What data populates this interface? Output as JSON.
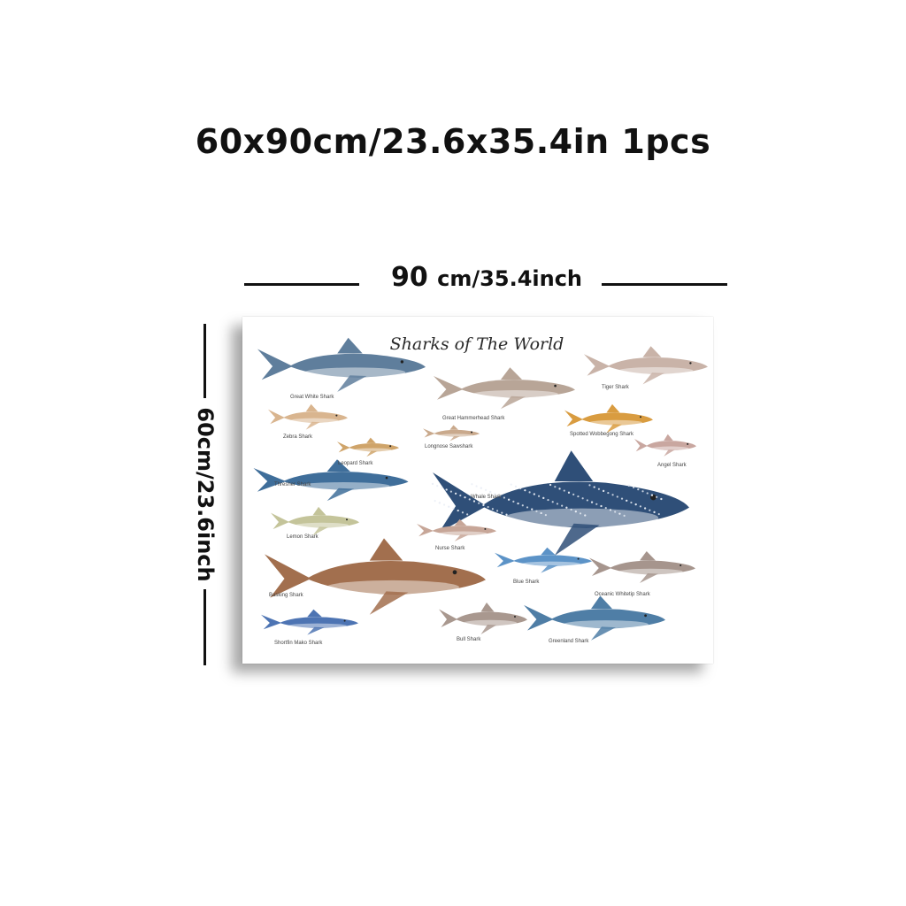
{
  "headline": "60x90cm/23.6x35.4in 1pcs",
  "width_dimension": {
    "value": "90",
    "unit": "cm/35.4inch"
  },
  "height_dimension": "60cm/23.6inch",
  "poster": {
    "title": "Sharks of The World",
    "sharks": [
      "Great White Shark",
      "Great Hammerhead Shark",
      "Tiger Shark",
      "Zebra Shark",
      "Leopard Shark",
      "Longnose Sawshark",
      "Spotted Wobbegong Shark",
      "Angel Shark",
      "Thresher Shark",
      "Whale Shark",
      "Lemon Shark",
      "Nurse Shark",
      "Blue Shark",
      "Oceanic Whitetip Shark",
      "Basking Shark",
      "Shortfin Mako Shark",
      "Bull Shark",
      "Greenland Shark"
    ]
  },
  "colors": {
    "great_white": "#5f7e9c",
    "hammerhead": "#b8a597",
    "tiger": "#c9b3a8",
    "zebra": "#d9b58f",
    "leopard": "#cfa46a",
    "sawshark": "#c9a98c",
    "wobbegong": "#d99c40",
    "angel": "#c9a7a0",
    "thresher": "#3f6e9a",
    "whale": "#2f4f78",
    "lemon": "#c4c49a",
    "nurse": "#c7a698",
    "blue": "#5c93c7",
    "whitetip": "#a6958d",
    "basking": "#a26f4e",
    "mako": "#4d74b3",
    "bull": "#a9988f",
    "greenland": "#4f7ea6"
  }
}
